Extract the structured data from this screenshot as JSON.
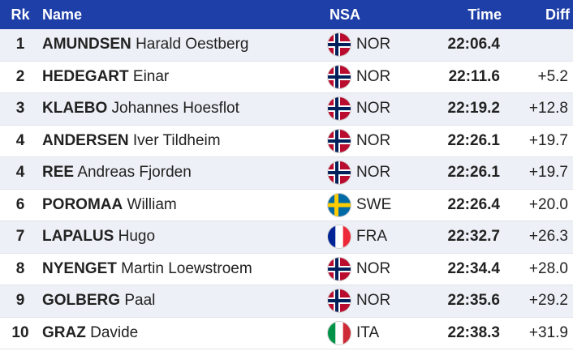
{
  "header": {
    "rank": "Rk",
    "name": "Name",
    "nsa": "NSA",
    "time": "Time",
    "diff": "Diff"
  },
  "colors": {
    "header_bg": "#1f3fa8",
    "row_alt_bg": "#eef0f7"
  },
  "rows": [
    {
      "rank": "1",
      "last": "AMUNDSEN",
      "first": "Harald Oestberg",
      "nsa": "NOR",
      "flag": "norway-flag-icon",
      "time": "22:06.4",
      "diff": ""
    },
    {
      "rank": "2",
      "last": "HEDEGART",
      "first": "Einar",
      "nsa": "NOR",
      "flag": "norway-flag-icon",
      "time": "22:11.6",
      "diff": "+5.2"
    },
    {
      "rank": "3",
      "last": "KLAEBO",
      "first": "Johannes Hoesflot",
      "nsa": "NOR",
      "flag": "norway-flag-icon",
      "time": "22:19.2",
      "diff": "+12.8"
    },
    {
      "rank": "4",
      "last": "ANDERSEN",
      "first": "Iver Tildheim",
      "nsa": "NOR",
      "flag": "norway-flag-icon",
      "time": "22:26.1",
      "diff": "+19.7"
    },
    {
      "rank": "4",
      "last": "REE",
      "first": "Andreas Fjorden",
      "nsa": "NOR",
      "flag": "norway-flag-icon",
      "time": "22:26.1",
      "diff": "+19.7"
    },
    {
      "rank": "6",
      "last": "POROMAA",
      "first": "William",
      "nsa": "SWE",
      "flag": "sweden-flag-icon",
      "time": "22:26.4",
      "diff": "+20.0"
    },
    {
      "rank": "7",
      "last": "LAPALUS",
      "first": "Hugo",
      "nsa": "FRA",
      "flag": "france-flag-icon",
      "time": "22:32.7",
      "diff": "+26.3"
    },
    {
      "rank": "8",
      "last": "NYENGET",
      "first": "Martin Loewstroem",
      "nsa": "NOR",
      "flag": "norway-flag-icon",
      "time": "22:34.4",
      "diff": "+28.0"
    },
    {
      "rank": "9",
      "last": "GOLBERG",
      "first": "Paal",
      "nsa": "NOR",
      "flag": "norway-flag-icon",
      "time": "22:35.6",
      "diff": "+29.2"
    },
    {
      "rank": "10",
      "last": "GRAZ",
      "first": "Davide",
      "nsa": "ITA",
      "flag": "italy-flag-icon",
      "time": "22:38.3",
      "diff": "+31.9"
    }
  ]
}
